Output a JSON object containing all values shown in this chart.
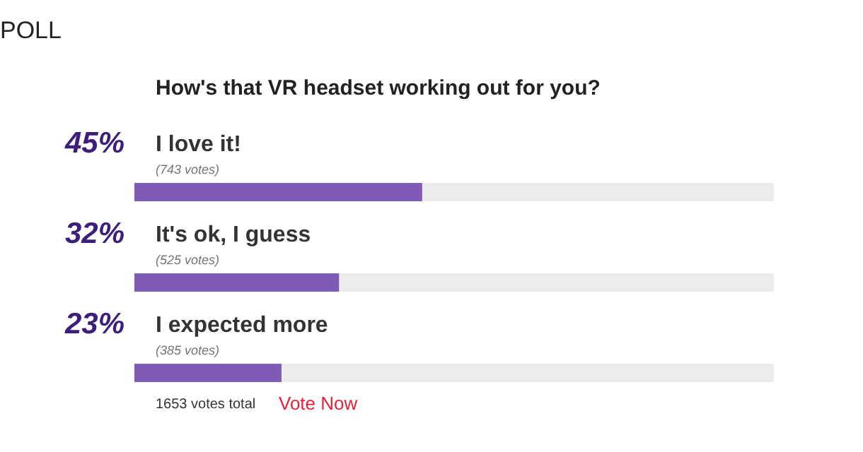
{
  "chart_data": {
    "type": "bar",
    "orientation": "horizontal",
    "title": "POLL",
    "subtitle": "How's that VR headset working out for you?",
    "categories": [
      "I love it!",
      "It's ok, I guess",
      "I expected more"
    ],
    "values": [
      45,
      32,
      23
    ],
    "value_labels": [
      "45%",
      "32%",
      "23%"
    ],
    "color": "#7f5ab6",
    "xlim": [
      0,
      100
    ],
    "annotations": [
      {
        "text": "(743 votes)",
        "y": "I love it!"
      },
      {
        "text": "(525 votes)",
        "y": "It's ok, I guess"
      },
      {
        "text": "(385 votes)",
        "y": "I expected more"
      },
      "1653 votes total",
      "Vote Now"
    ]
  }
}
